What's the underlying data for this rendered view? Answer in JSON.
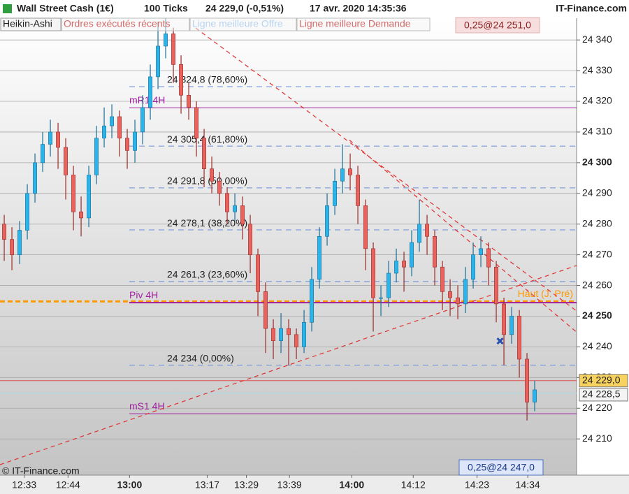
{
  "header": {
    "instrument": "Wall Street Cash (1€)",
    "interval": "100 Ticks",
    "price": "24 229,0 (-0,51%)",
    "date": "17 avr. 2020 14:35:36",
    "site": "IT-Finance.com"
  },
  "toolbar": [
    "Heikin-Ashi",
    "Ordres exécutés récents",
    "Ligne meilleure Offre",
    "Ligne meilleure Demande"
  ],
  "copyright": "© IT-Finance.com",
  "chart_data": {
    "type": "candlestick",
    "colors": {
      "up": "#2ab4ea",
      "down": "#e8625e"
    },
    "open": [
      24280,
      24275,
      24270,
      24278,
      24290,
      24300,
      24306,
      24310,
      24305,
      24296,
      24284,
      24282,
      24296,
      24308,
      24312,
      24315,
      24308,
      24304,
      24310,
      24318,
      24328,
      24338,
      24342,
      24332,
      24322,
      24318,
      24308,
      24298,
      24294,
      24290,
      24284,
      24286,
      24280,
      24270,
      24258,
      24246,
      24242,
      24246,
      24244,
      24240,
      24248,
      24262,
      24276,
      24286,
      24294,
      24298,
      24296,
      24286,
      24272,
      24256,
      24256,
      24264,
      24268,
      24266,
      24274,
      24280,
      24276,
      24266,
      24258,
      24256,
      24254,
      24262,
      24270,
      24272,
      24266,
      24254,
      24244,
      24250,
      24236,
      24222
    ],
    "high": [
      24283,
      24279,
      24281,
      24293,
      24303,
      24310,
      24314,
      24313,
      24308,
      24299,
      24289,
      24299,
      24312,
      24318,
      24319,
      24317,
      24311,
      24314,
      24322,
      24332,
      24346,
      24348,
      24344,
      24335,
      24326,
      24320,
      24311,
      24302,
      24297,
      24292,
      24290,
      24289,
      24283,
      24272,
      24261,
      24249,
      24251,
      24249,
      24246,
      24252,
      24266,
      24279,
      24290,
      24298,
      24306,
      24303,
      24299,
      24288,
      24274,
      24260,
      24268,
      24272,
      24271,
      24278,
      24288,
      24283,
      24278,
      24268,
      24262,
      24260,
      24266,
      24274,
      24276,
      24274,
      24268,
      24256,
      24253,
      24252,
      24238,
      24229
    ],
    "low": [
      24268,
      24265,
      24267,
      24275,
      24287,
      24297,
      24302,
      24298,
      24288,
      24278,
      24276,
      24279,
      24293,
      24305,
      24308,
      24302,
      24298,
      24300,
      24306,
      24314,
      24324,
      24334,
      24326,
      24316,
      24314,
      24302,
      24292,
      24290,
      24286,
      24280,
      24281,
      24275,
      24264,
      24250,
      24238,
      24236,
      24238,
      24234,
      24236,
      24238,
      24245,
      24259,
      24273,
      24283,
      24290,
      24291,
      24280,
      24265,
      24245,
      24250,
      24253,
      24261,
      24258,
      24263,
      24271,
      24270,
      24260,
      24252,
      24250,
      24249,
      24251,
      24259,
      24266,
      24260,
      24248,
      24234,
      24241,
      24230,
      24216,
      24219
    ],
    "close": [
      24275,
      24270,
      24278,
      24290,
      24300,
      24306,
      24310,
      24305,
      24296,
      24284,
      24282,
      24296,
      24308,
      24312,
      24315,
      24308,
      24304,
      24310,
      24318,
      24328,
      24338,
      24342,
      24332,
      24322,
      24318,
      24308,
      24298,
      24294,
      24290,
      24284,
      24286,
      24280,
      24270,
      24258,
      24246,
      24242,
      24246,
      24244,
      24240,
      24248,
      24262,
      24276,
      24286,
      24294,
      24298,
      24296,
      24286,
      24272,
      24256,
      24256,
      24264,
      24268,
      24266,
      24274,
      24280,
      24276,
      24266,
      24258,
      24256,
      24254,
      24262,
      24270,
      24272,
      24266,
      24254,
      24244,
      24250,
      24236,
      24222,
      24226
    ],
    "xlim": [
      -0.55,
      74.45
    ],
    "xticks": [
      {
        "value": 2.6,
        "label": "12:33"
      },
      {
        "value": 8.3,
        "label": "12:44"
      },
      {
        "value": 16.3,
        "label": "13:00",
        "bold": true
      },
      {
        "value": 26.4,
        "label": "13:17"
      },
      {
        "value": 31.5,
        "label": "13:29"
      },
      {
        "value": 37.1,
        "label": "13:39"
      },
      {
        "value": 45.2,
        "label": "14:00",
        "bold": true
      },
      {
        "value": 53.2,
        "label": "14:12"
      },
      {
        "value": 61.5,
        "label": "14:23"
      },
      {
        "value": 68.1,
        "label": "14:34"
      }
    ],
    "ylim": [
      24198.2,
      24347.1
    ],
    "yticks": [
      {
        "value": 24210,
        "label": "24 210"
      },
      {
        "value": 24220,
        "label": "24 220"
      },
      {
        "value": 24230,
        "label": "24 230"
      },
      {
        "value": 24240,
        "label": "24 240"
      },
      {
        "value": 24250,
        "label": "24 250",
        "bold": true
      },
      {
        "value": 24260,
        "label": "24 260"
      },
      {
        "value": 24270,
        "label": "24 270"
      },
      {
        "value": 24280,
        "label": "24 280"
      },
      {
        "value": 24290,
        "label": "24 290"
      },
      {
        "value": 24300,
        "label": "24 300",
        "bold": true
      },
      {
        "value": 24310,
        "label": "24 310"
      },
      {
        "value": 24320,
        "label": "24 320"
      },
      {
        "value": 24330,
        "label": "24 330"
      },
      {
        "value": 24340,
        "label": "24 340"
      }
    ],
    "grid": true,
    "fib_levels": [
      {
        "value": 24324.8,
        "label": "24 324,8 (78,60%)"
      },
      {
        "value": 24305.4,
        "label": "24 305,4 (61,80%)"
      },
      {
        "value": 24291.8,
        "label": "24 291,8 (50,00%)"
      },
      {
        "value": 24278.1,
        "label": "24 278,1 (38,20%)"
      },
      {
        "value": 24261.3,
        "label": "24 261,3 (23,60%)"
      },
      {
        "value": 24234,
        "label": "24 234 (0,00%)"
      }
    ],
    "pivots": [
      {
        "value": 24317.9,
        "label": "mR1 4H"
      },
      {
        "value": 24254.4,
        "label": "Piv 4H"
      },
      {
        "value": 24218.2,
        "label": "mS1 4H"
      }
    ],
    "pivot_color": "#a020a0",
    "reference_line": {
      "value": 24254.8,
      "label": "Haut (J. Pré)",
      "color": "#ff9900"
    },
    "trendlines": [
      {
        "x": [
          24.9,
          74.45
        ],
        "y": [
          24343.9,
          24251.7
        ]
      },
      {
        "x": [
          44.9,
          74.45
        ],
        "y": [
          24307.4,
          24244.8
        ]
      },
      {
        "x": [
          -0.55,
          74.45
        ],
        "y": [
          24201.6,
          24266.5
        ]
      }
    ],
    "marker": {
      "x": 64.5,
      "y": 24241.9
    },
    "price_tags": [
      {
        "value": 24229,
        "label": "24 229,0",
        "color": "#e05050"
      },
      {
        "value": 24228.5,
        "label": "24 228,5",
        "color": "#a8dce8"
      }
    ],
    "order_boxes": [
      "0,25@24 251,0",
      "0,25@24 247,0"
    ]
  }
}
